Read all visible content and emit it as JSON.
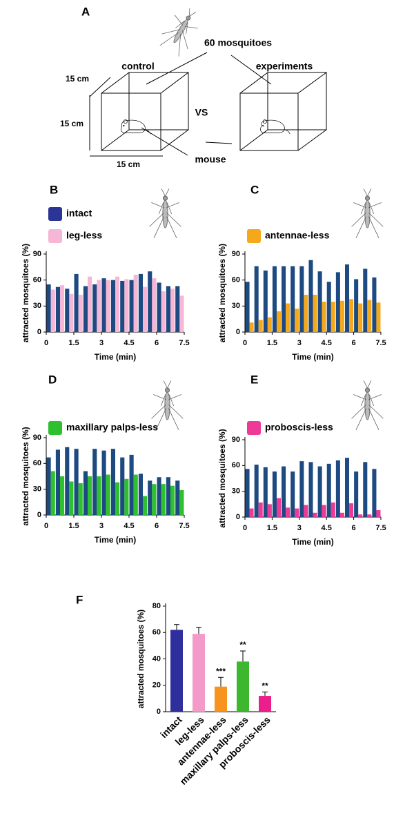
{
  "diagram": {
    "panel": "A",
    "mosquitoes": "60 mosquitoes",
    "control": "control",
    "experiments": "experiments",
    "vs": "VS",
    "mouse": "mouse",
    "depth": "15 cm",
    "height": "15 cm",
    "width": "15 cm"
  },
  "chart_data": [
    {
      "type": "grouped-bar",
      "panel": "B",
      "xlabel": "Time (min)",
      "ylabel": "attracted mosquitoes (%)",
      "x": [
        0.25,
        0.75,
        1.25,
        1.75,
        2.25,
        2.75,
        3.25,
        3.75,
        4.25,
        4.75,
        5.25,
        5.75,
        6.25,
        6.75,
        7.25
      ],
      "series": [
        {
          "name": "intact",
          "color": "#1d4a80",
          "legend_color": "#2b3597",
          "values": [
            55,
            52,
            50,
            67,
            53,
            55,
            62,
            60,
            59,
            60,
            67,
            70,
            57,
            53,
            53
          ]
        },
        {
          "name": "leg-less",
          "color": "#f6b6d6",
          "values": [
            49,
            54,
            44,
            43,
            64,
            60,
            60,
            64,
            61,
            66,
            52,
            62,
            47,
            50,
            42
          ]
        }
      ],
      "xlim": [
        0,
        7.5
      ],
      "xticks": [
        0,
        1.5,
        3,
        4.5,
        6,
        7.5
      ],
      "ylim": [
        0,
        90
      ],
      "yticks": [
        0,
        30,
        60,
        90
      ]
    },
    {
      "type": "grouped-bar",
      "panel": "C",
      "xlabel": "Time (min)",
      "ylabel": "attracted mosquitoes (%)",
      "x": [
        0.25,
        0.75,
        1.25,
        1.75,
        2.25,
        2.75,
        3.25,
        3.75,
        4.25,
        4.75,
        5.25,
        5.75,
        6.25,
        6.75,
        7.25
      ],
      "series": [
        {
          "color": "#1d4a80",
          "values": [
            58,
            76,
            71,
            76,
            76,
            76,
            76,
            83,
            70,
            58,
            69,
            78,
            61,
            73,
            63
          ]
        },
        {
          "name": "antennae-less",
          "color": "#f5a81c",
          "values": [
            11,
            14,
            17,
            24,
            33,
            27,
            43,
            43,
            35,
            35,
            36,
            38,
            33,
            37,
            34
          ]
        }
      ],
      "xlim": [
        0,
        7.5
      ],
      "xticks": [
        0,
        1.5,
        3,
        4.5,
        6,
        7.5
      ],
      "ylim": [
        0,
        90
      ],
      "yticks": [
        0,
        30,
        60,
        90
      ]
    },
    {
      "type": "grouped-bar",
      "panel": "D",
      "xlabel": "Time (min)",
      "ylabel": "attracted mosquitoes (%)",
      "x": [
        0.25,
        0.75,
        1.25,
        1.75,
        2.25,
        2.75,
        3.25,
        3.75,
        4.25,
        4.75,
        5.25,
        5.75,
        6.25,
        6.75,
        7.25
      ],
      "series": [
        {
          "color": "#1d4a80",
          "values": [
            67,
            76,
            79,
            77,
            51,
            77,
            75,
            77,
            67,
            70,
            48,
            40,
            44,
            44,
            40
          ]
        },
        {
          "name": "maxillary palps-less",
          "color": "#2fc02f",
          "values": [
            51,
            45,
            39,
            37,
            45,
            45,
            47,
            38,
            42,
            47,
            22,
            36,
            36,
            34,
            29
          ]
        }
      ],
      "xlim": [
        0,
        7.5
      ],
      "xticks": [
        0,
        1.5,
        3,
        4.5,
        6,
        7.5
      ],
      "ylim": [
        0,
        90
      ],
      "yticks": [
        0,
        30,
        60,
        90
      ]
    },
    {
      "type": "grouped-bar",
      "panel": "E",
      "xlabel": "Time (min)",
      "ylabel": "attracted mosquitoes (%)",
      "x": [
        0.25,
        0.75,
        1.25,
        1.75,
        2.25,
        2.75,
        3.25,
        3.75,
        4.25,
        4.75,
        5.25,
        5.75,
        6.25,
        6.75,
        7.25
      ],
      "series": [
        {
          "color": "#1d4a80",
          "values": [
            56,
            61,
            58,
            53,
            59,
            53,
            65,
            64,
            59,
            62,
            66,
            69,
            53,
            64,
            56
          ]
        },
        {
          "name": "proboscis-less",
          "color": "#ec3a96",
          "values": [
            10,
            17,
            15,
            22,
            11,
            10,
            14,
            5,
            14,
            17,
            5,
            16,
            3,
            3,
            8
          ]
        }
      ],
      "xlim": [
        0,
        7.5
      ],
      "xticks": [
        0,
        1.5,
        3,
        4.5,
        6,
        7.5
      ],
      "ylim": [
        0,
        90
      ],
      "yticks": [
        0,
        30,
        60,
        90
      ]
    },
    {
      "type": "bar",
      "panel": "F",
      "ylabel": "attracted mosquitoes (%)",
      "categories": [
        "intact",
        "leg-less",
        "antennae-less",
        "maxillary palps-less",
        "proboscis-less"
      ],
      "values": [
        62,
        59,
        19,
        38,
        12
      ],
      "errors": [
        4,
        5,
        7,
        8,
        3
      ],
      "significance": [
        null,
        null,
        "***",
        "**",
        "**"
      ],
      "colors": [
        "#2e2e9c",
        "#f49ac8",
        "#f7941d",
        "#3cb72e",
        "#ec1e8c"
      ],
      "ylim": [
        0,
        80
      ],
      "yticks": [
        0,
        20,
        40,
        60,
        80
      ]
    }
  ]
}
